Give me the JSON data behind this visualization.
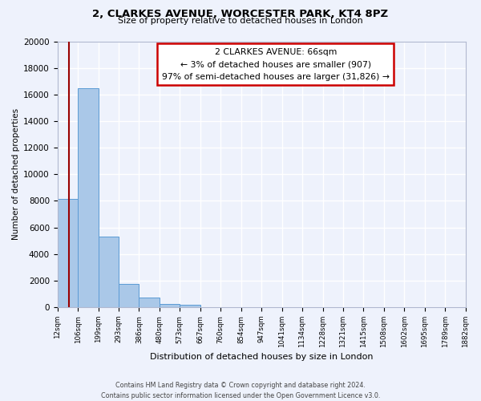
{
  "title": "2, CLARKES AVENUE, WORCESTER PARK, KT4 8PZ",
  "subtitle": "Size of property relative to detached houses in London",
  "xlabel": "Distribution of detached houses by size in London",
  "ylabel": "Number of detached properties",
  "bar_values": [
    8150,
    16500,
    5300,
    1750,
    700,
    250,
    150,
    0,
    0,
    0,
    0,
    0,
    0,
    0,
    0,
    0,
    0,
    0,
    0,
    0
  ],
  "bin_labels": [
    "12sqm",
    "106sqm",
    "199sqm",
    "293sqm",
    "386sqm",
    "480sqm",
    "573sqm",
    "667sqm",
    "760sqm",
    "854sqm",
    "947sqm",
    "1041sqm",
    "1134sqm",
    "1228sqm",
    "1321sqm",
    "1415sqm",
    "1508sqm",
    "1602sqm",
    "1695sqm",
    "1789sqm",
    "1882sqm"
  ],
  "bin_edges": [
    12,
    106,
    199,
    293,
    386,
    480,
    573,
    667,
    760,
    854,
    947,
    1041,
    1134,
    1228,
    1321,
    1415,
    1508,
    1602,
    1695,
    1789,
    1882
  ],
  "ylim": [
    0,
    20000
  ],
  "yticks": [
    0,
    2000,
    4000,
    6000,
    8000,
    10000,
    12000,
    14000,
    16000,
    18000,
    20000
  ],
  "bar_color": "#aac8e8",
  "bar_edge_color": "#5b9bd5",
  "property_size": 66,
  "vline_color": "#990000",
  "annotation_line1": "2 CLARKES AVENUE: 66sqm",
  "annotation_line2": "← 3% of detached houses are smaller (907)",
  "annotation_line3": "97% of semi-detached houses are larger (31,826) →",
  "annotation_box_facecolor": "#ffffff",
  "annotation_box_edgecolor": "#cc0000",
  "footer_line1": "Contains HM Land Registry data © Crown copyright and database right 2024.",
  "footer_line2": "Contains public sector information licensed under the Open Government Licence v3.0.",
  "background_color": "#eef2fc",
  "grid_color": "#ffffff",
  "spine_color": "#b0b8d0"
}
